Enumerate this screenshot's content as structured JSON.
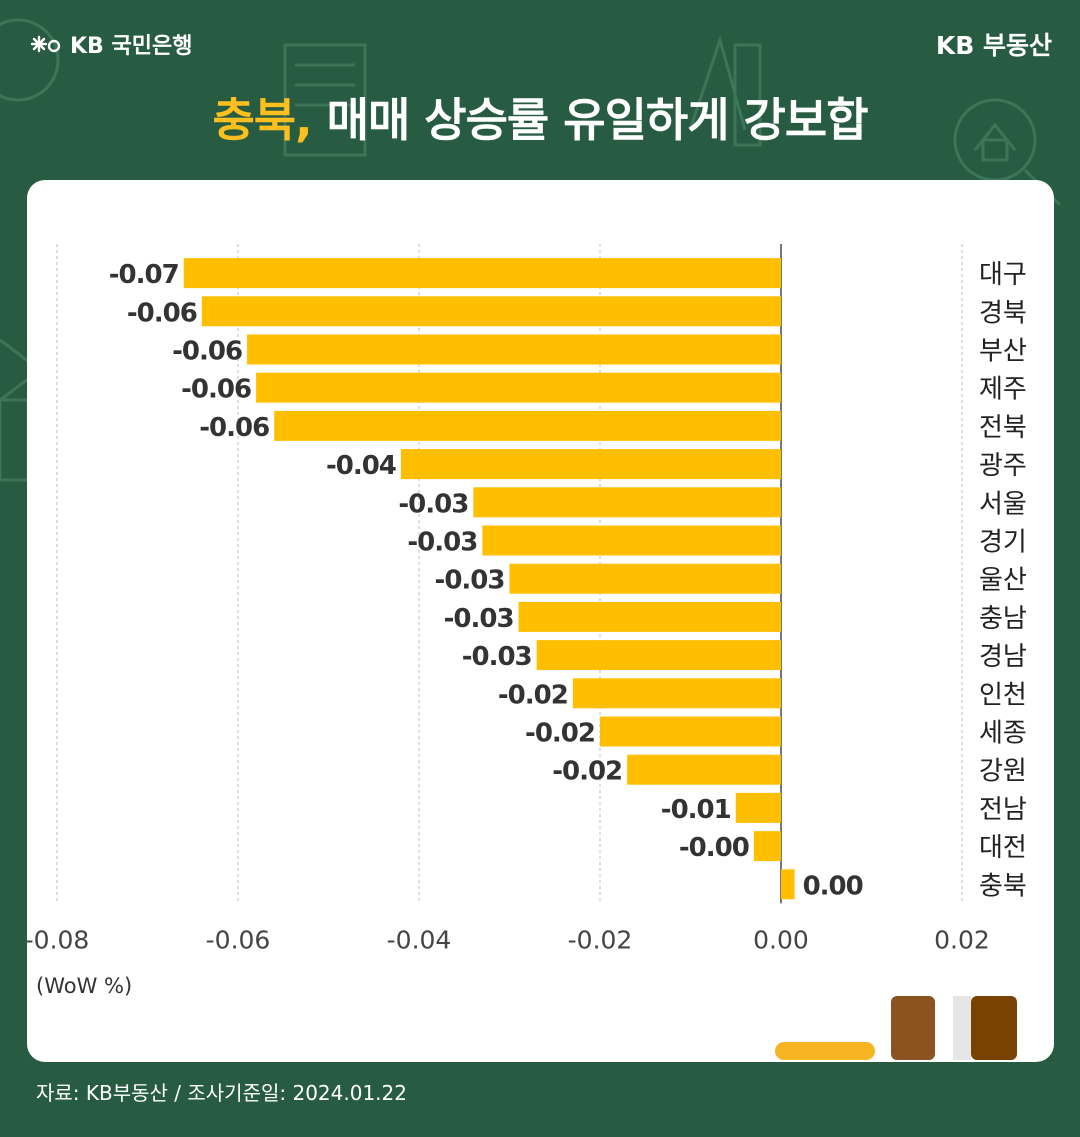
{
  "header": {
    "brand_left": "KB 국민은행",
    "brand_right": "KB 부동산",
    "title_highlight": "충북,",
    "title_rest": " 매매 상승률 유일하게 강보합"
  },
  "unit_label": "(WoW %)",
  "source": "자료: KB부동산 / 조사기준일: 2024.01.22",
  "colors": {
    "background": "#275c42",
    "bar": "#ffbf00",
    "highlight": "#ffbf1e"
  },
  "chart_data": {
    "type": "bar",
    "orientation": "horizontal",
    "categories": [
      "대구",
      "경북",
      "부산",
      "제주",
      "전북",
      "광주",
      "서울",
      "경기",
      "울산",
      "충남",
      "경남",
      "인천",
      "세종",
      "강원",
      "전남",
      "대전",
      "충북"
    ],
    "values": [
      -0.066,
      -0.064,
      -0.059,
      -0.058,
      -0.056,
      -0.042,
      -0.034,
      -0.033,
      -0.03,
      -0.029,
      -0.027,
      -0.023,
      -0.02,
      -0.017,
      -0.005,
      -0.003,
      0.0015
    ],
    "data_labels": [
      "-0.07",
      "-0.06",
      "-0.06",
      "-0.06",
      "-0.06",
      "-0.04",
      "-0.03",
      "-0.03",
      "-0.03",
      "-0.03",
      "-0.03",
      "-0.02",
      "-0.02",
      "-0.02",
      "-0.01",
      "-0.00",
      "0.00"
    ],
    "xlim": [
      -0.08,
      0.02
    ],
    "xticks": [
      -0.08,
      -0.06,
      -0.04,
      -0.02,
      0.0,
      0.02
    ],
    "xtick_labels": [
      "-0.08",
      "-0.06",
      "-0.04",
      "-0.02",
      "0.00",
      "0.02"
    ],
    "xlabel": "(WoW %)",
    "grid": "vertical dashed",
    "category_labels_side": "right"
  }
}
